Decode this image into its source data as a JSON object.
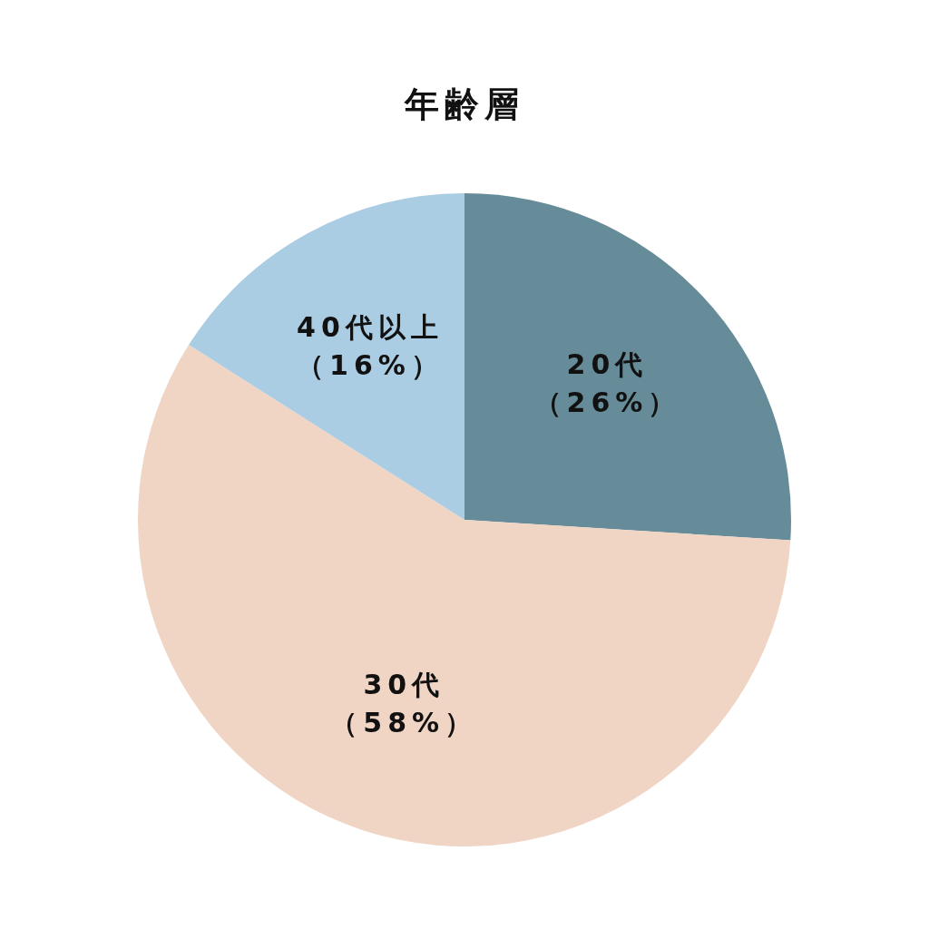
{
  "chart_data": {
    "type": "pie",
    "title": "年齢層",
    "categories": [
      "20代",
      "30代",
      "40代以上"
    ],
    "values": [
      26,
      58,
      16
    ],
    "colors": [
      "#668c99",
      "#f0d5c5",
      "#abcde3"
    ],
    "value_labels": [
      "（26%）",
      "（58%）",
      "（16%）"
    ]
  }
}
